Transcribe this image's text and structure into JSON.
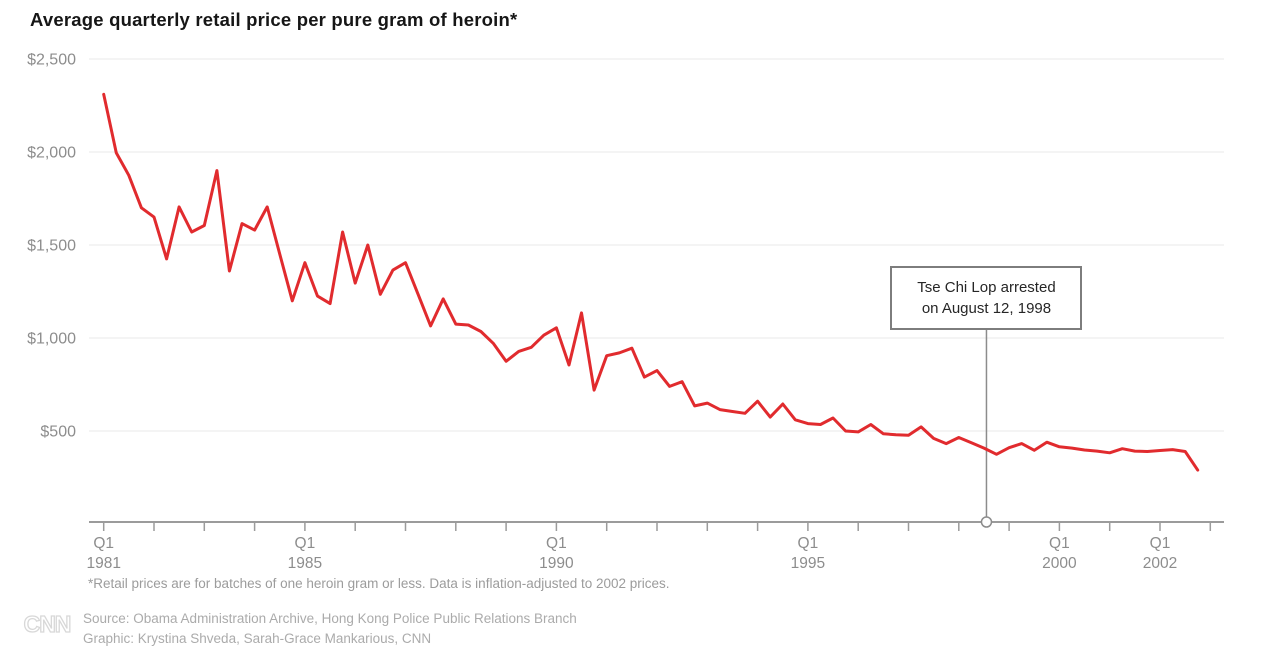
{
  "page": {
    "title": "Average quarterly retail price per pure gram of heroin*",
    "footnote": "*Retail prices are for batches of one heroin gram or less. Data is inflation-adjusted to 2002 prices.",
    "source_line1": "Source: Obama Administration Archive, Hong Kong Police Public Relations Branch",
    "source_line2": "Graphic: Krystina Shveda, Sarah-Grace Mankarious, CNN",
    "logo_text": "CNN"
  },
  "annotation": {
    "line1": "Tse Chi Lop arrested",
    "line2": "on August 12, 1998",
    "x_year": 1998.55
  },
  "colors": {
    "line": "#e12b2e",
    "grid": "#e8e8e8",
    "axis": "#9b9b9b",
    "tick_label": "#8d8d8d",
    "annotation_line": "#8c8c8c",
    "logo": "#d8d8d8"
  },
  "chart_data": {
    "type": "line",
    "title": "Average quarterly retail price per pure gram of heroin*",
    "unit": "USD per pure gram",
    "frequency": "quarterly",
    "start": "Q1 1981",
    "end": "Q4 2002",
    "ylim": [
      0,
      2500
    ],
    "grid": "horizontal",
    "legend": "none",
    "y_ticks": [
      {
        "value": 2500,
        "label": "$2,500"
      },
      {
        "value": 2000,
        "label": "$2,000"
      },
      {
        "value": 1500,
        "label": "$1,500"
      },
      {
        "value": 1000,
        "label": "$1,000"
      },
      {
        "value": 500,
        "label": "$500"
      }
    ],
    "x_axis": {
      "tick_year_start": 1981,
      "tick_year_end": 2003,
      "labeled_years": [
        {
          "year": 1981,
          "line1": "Q1",
          "line2": "1981"
        },
        {
          "year": 1985,
          "line1": "Q1",
          "line2": "1985"
        },
        {
          "year": 1990,
          "line1": "Q1",
          "line2": "1990"
        },
        {
          "year": 1995,
          "line1": "Q1",
          "line2": "1995"
        },
        {
          "year": 2000,
          "line1": "Q1",
          "line2": "2000"
        },
        {
          "year": 2002,
          "line1": "Q1",
          "line2": "2002"
        }
      ]
    },
    "series": [
      {
        "name": "Average quarterly retail price per pure gram of heroin",
        "color": "#e12b2e",
        "values": [
          2310,
          1995,
          1875,
          1700,
          1650,
          1425,
          1705,
          1570,
          1605,
          1900,
          1360,
          1615,
          1580,
          1705,
          1450,
          1200,
          1405,
          1225,
          1185,
          1570,
          1295,
          1500,
          1235,
          1365,
          1405,
          1235,
          1065,
          1210,
          1075,
          1070,
          1035,
          970,
          875,
          928,
          950,
          1015,
          1055,
          855,
          1135,
          720,
          905,
          920,
          945,
          790,
          825,
          740,
          765,
          635,
          650,
          615,
          605,
          595,
          660,
          575,
          645,
          560,
          540,
          535,
          570,
          500,
          495,
          535,
          485,
          480,
          477,
          522,
          460,
          432,
          465,
          437,
          408,
          375,
          410,
          432,
          396,
          440,
          415,
          408,
          398,
          392,
          383,
          405,
          392,
          390,
          395,
          400,
          390,
          290
        ]
      }
    ]
  }
}
